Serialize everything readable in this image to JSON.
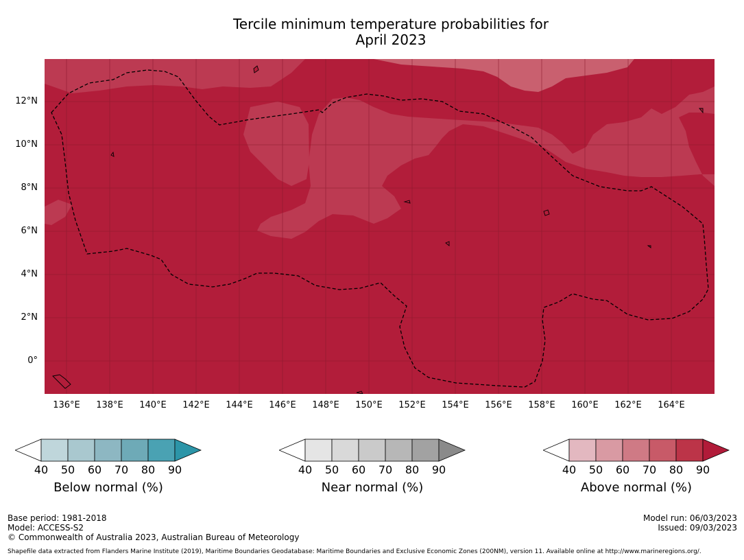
{
  "title": {
    "line1": "Tercile minimum temperature probabilities for",
    "line2": "April 2023"
  },
  "map": {
    "lon_labels": [
      "136°E",
      "138°E",
      "140°E",
      "142°E",
      "144°E",
      "146°E",
      "148°E",
      "150°E",
      "152°E",
      "154°E",
      "156°E",
      "158°E",
      "160°E",
      "162°E",
      "164°E"
    ],
    "lat_labels": [
      "12°N",
      "10°N",
      "8°N",
      "6°N",
      "4°N",
      "2°N",
      "0°"
    ],
    "fill_colors": {
      "dark": "#b21d3a",
      "mid": "#bc3a52",
      "light": "#c9606f"
    }
  },
  "colorbars": [
    {
      "title": "Below normal (%)",
      "ticks": [
        "40",
        "50",
        "60",
        "70",
        "80",
        "90"
      ],
      "colors": [
        "#ffffff",
        "#bfd6db",
        "#a9c8cf",
        "#8db7c2",
        "#6eaab7",
        "#4aa2b3",
        "#2c95a8"
      ]
    },
    {
      "title": "Near normal (%)",
      "ticks": [
        "40",
        "50",
        "60",
        "70",
        "80",
        "90"
      ],
      "colors": [
        "#ffffff",
        "#e5e5e5",
        "#d9d9d9",
        "#cacaca",
        "#b7b7b7",
        "#a2a2a2",
        "#8a8a8a"
      ]
    },
    {
      "title": "Above normal (%)",
      "ticks": [
        "40",
        "50",
        "60",
        "70",
        "80",
        "90"
      ],
      "colors": [
        "#ffffff",
        "#e3b8c0",
        "#d99aa3",
        "#cf7a85",
        "#c85a68",
        "#bc3448",
        "#b11b39"
      ]
    }
  ],
  "footer": {
    "base_period": "Base period: 1981-2018",
    "model": "Model: ACCESS-S2",
    "copyright": "© Commonwealth of Australia 2023, Australian Bureau of Meteorology",
    "model_run": "Model run: 06/03/2023",
    "issued": "Issued: 09/03/2023",
    "shapefile": "Shapefile data extracted from Flanders Marine Institute (2019), Maritime Boundaries Geodatabase: Maritime Boundaries and Exclusive Economic Zones (200NM), version 11. Available online at http://www.marineregions.org/."
  }
}
